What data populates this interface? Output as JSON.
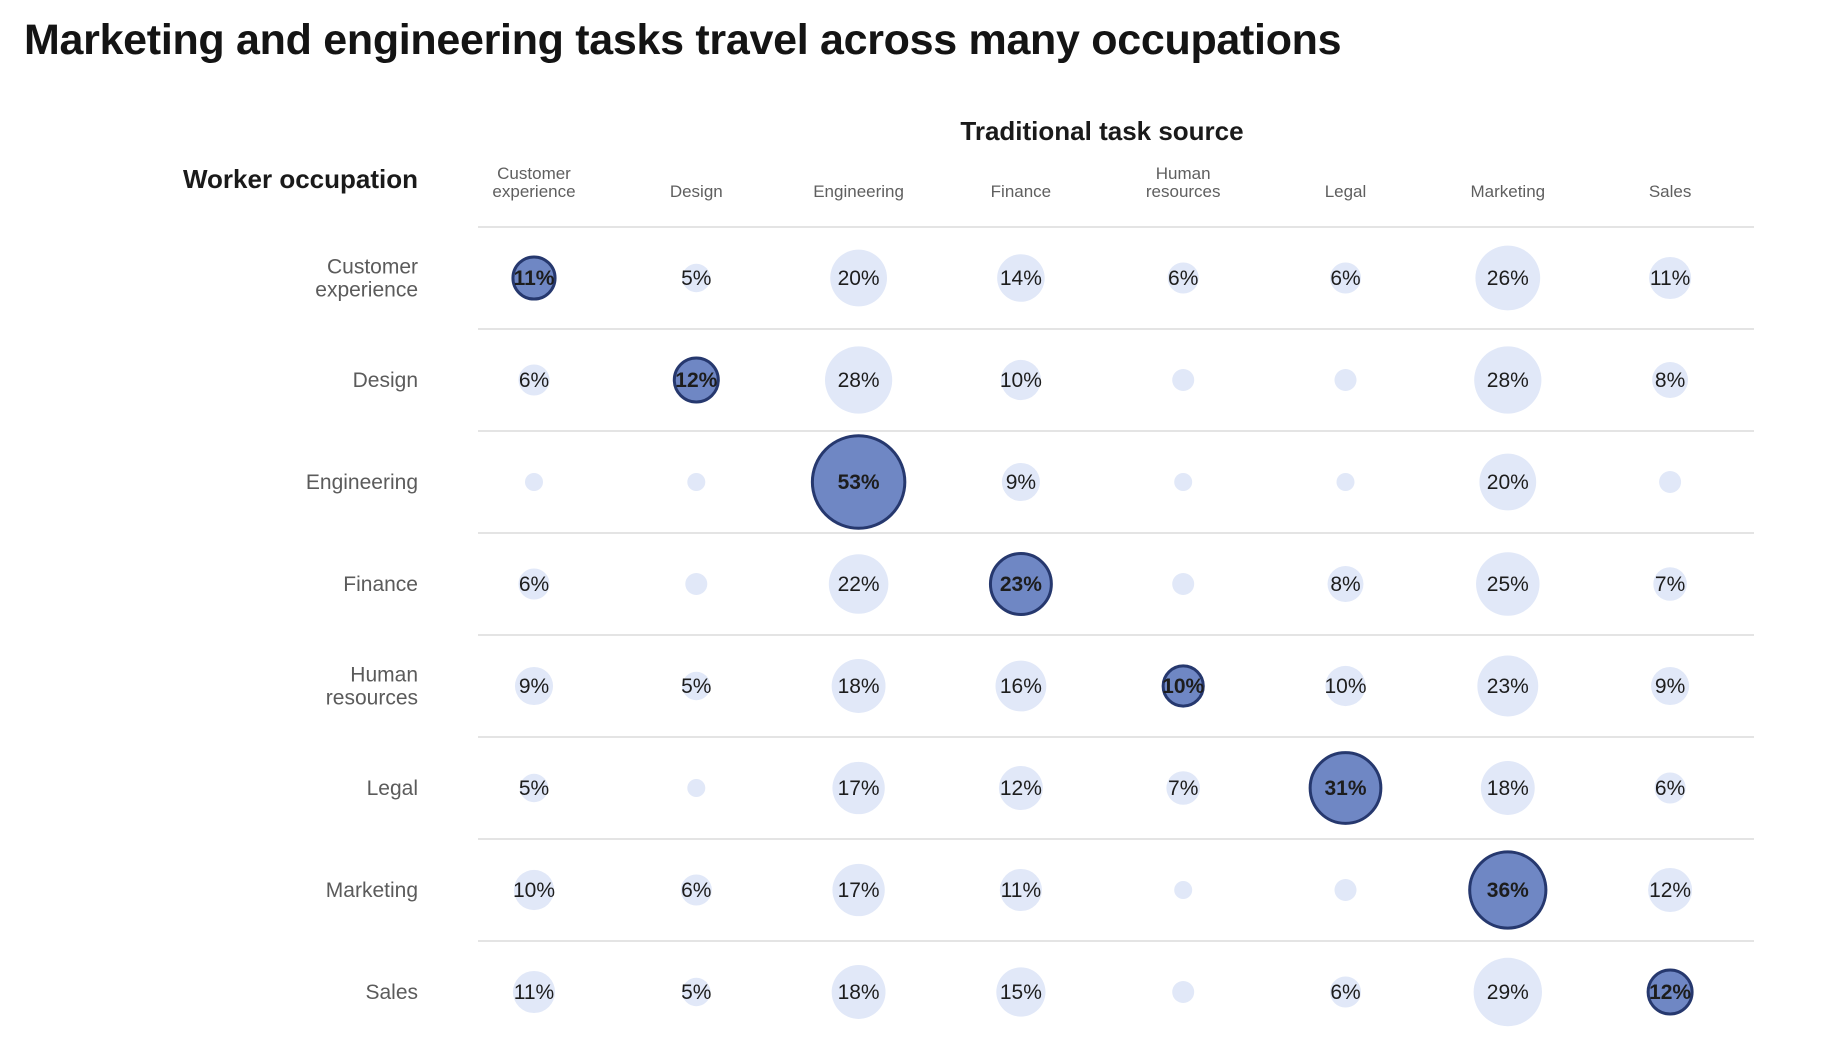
{
  "title": "Marketing and engineering tasks travel across many occupations",
  "colors": {
    "bubble_fill": "#e1e8f8",
    "diagonal_fill": "#6f87c4",
    "diagonal_stroke": "#26386e",
    "gridline": "#dcdcdc"
  },
  "chart_data": {
    "type": "bubble-matrix",
    "xlabel": "Traditional task source",
    "ylabel": "Worker occupation",
    "columns": [
      [
        "Customer",
        "experience"
      ],
      [
        "Design"
      ],
      [
        "Engineering"
      ],
      [
        "Finance"
      ],
      [
        "Human",
        "resources"
      ],
      [
        "Legal"
      ],
      [
        "Marketing"
      ],
      [
        "Sales"
      ]
    ],
    "rows": [
      [
        "Customer",
        "experience"
      ],
      [
        "Design"
      ],
      [
        "Engineering"
      ],
      [
        "Finance"
      ],
      [
        "Human",
        "resources"
      ],
      [
        "Legal"
      ],
      [
        "Marketing"
      ],
      [
        "Sales"
      ]
    ],
    "values": [
      [
        11,
        5,
        20,
        14,
        6,
        6,
        26,
        11
      ],
      [
        6,
        12,
        28,
        10,
        3,
        3,
        28,
        8
      ],
      [
        2,
        2,
        53,
        9,
        1,
        2,
        20,
        3
      ],
      [
        6,
        3,
        22,
        23,
        3,
        8,
        25,
        7
      ],
      [
        9,
        5,
        18,
        16,
        10,
        10,
        23,
        9
      ],
      [
        5,
        2,
        17,
        12,
        7,
        31,
        18,
        6
      ],
      [
        10,
        6,
        17,
        11,
        2,
        3,
        36,
        12
      ],
      [
        11,
        5,
        18,
        15,
        3,
        6,
        29,
        12
      ]
    ],
    "labels": [
      [
        "11%",
        "5%",
        "20%",
        "14%",
        "6%",
        "6%",
        "26%",
        "11%"
      ],
      [
        "6%",
        "12%",
        "28%",
        "10%",
        "",
        "",
        "28%",
        "8%"
      ],
      [
        "",
        "",
        "53%",
        "9%",
        "",
        "",
        "20%",
        ""
      ],
      [
        "6%",
        "",
        "22%",
        "23%",
        "",
        "8%",
        "25%",
        "7%"
      ],
      [
        "9%",
        "5%",
        "18%",
        "16%",
        "10%",
        "10%",
        "23%",
        "9%"
      ],
      [
        "5%",
        "",
        "17%",
        "12%",
        "7%",
        "31%",
        "18%",
        "6%"
      ],
      [
        "10%",
        "6%",
        "17%",
        "11%",
        "",
        "",
        "36%",
        "12%"
      ],
      [
        "11%",
        "5%",
        "18%",
        "15%",
        "",
        "6%",
        "29%",
        "12%"
      ]
    ],
    "highlight": "diagonal",
    "unit": "%"
  }
}
